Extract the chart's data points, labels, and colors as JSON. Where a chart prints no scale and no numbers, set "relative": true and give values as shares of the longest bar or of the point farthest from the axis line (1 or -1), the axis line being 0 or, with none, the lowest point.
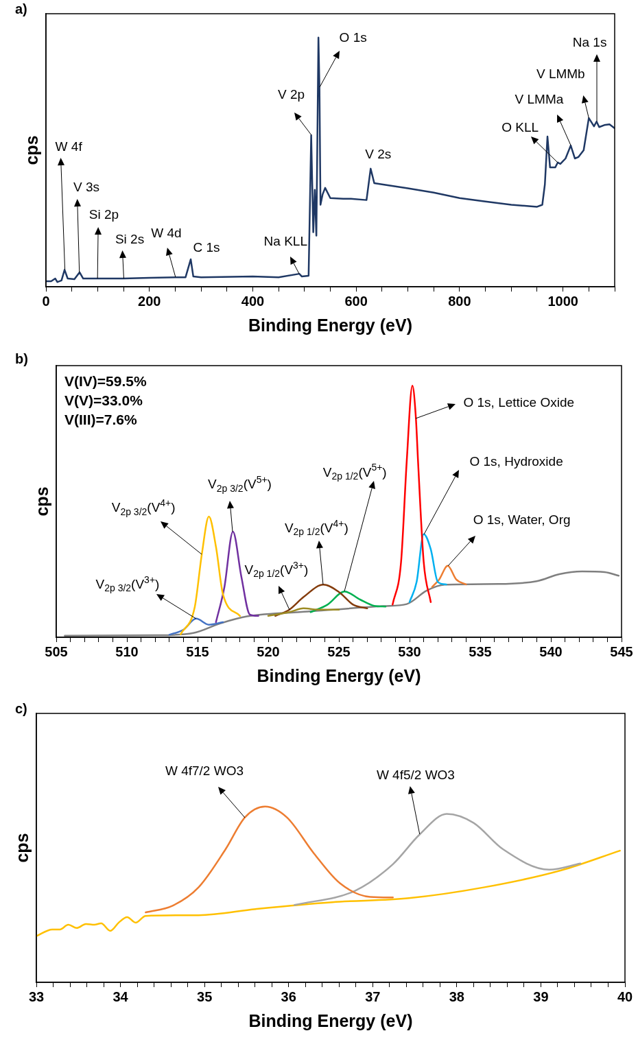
{
  "chart_data": [
    {
      "type": "line",
      "title": "a)",
      "xlabel": "Binding Energy (eV)",
      "ylabel": "cps",
      "relative": true,
      "grid": false,
      "legend": false,
      "marker": "none",
      "line_style": "solid",
      "xlim": [
        0,
        1100
      ],
      "xticks": [
        0,
        {
          "value": 50,
          "label": null
        },
        {
          "value": 100,
          "label": null
        },
        {
          "value": 150,
          "label": null
        },
        200,
        {
          "value": 250,
          "label": null
        },
        {
          "value": 300,
          "label": null
        },
        {
          "value": 350,
          "label": null
        },
        400,
        {
          "value": 450,
          "label": null
        },
        {
          "value": 500,
          "label": null
        },
        {
          "value": 550,
          "label": null
        },
        600,
        {
          "value": 650,
          "label": null
        },
        {
          "value": 700,
          "label": null
        },
        {
          "value": 750,
          "label": null
        },
        800,
        {
          "value": 850,
          "label": null
        },
        {
          "value": 900,
          "label": null
        },
        {
          "value": 950,
          "label": null
        },
        1000,
        {
          "value": 1050,
          "label": null
        },
        {
          "value": 1100,
          "label": null
        }
      ],
      "series": [
        {
          "color": "#1f3864",
          "x": [
            0,
            10,
            18,
            22,
            30,
            36,
            42,
            55,
            65,
            72,
            100,
            150,
            200,
            250,
            270,
            280,
            285,
            300,
            400,
            450,
            490,
            495,
            508,
            513,
            517,
            520,
            523,
            527,
            529,
            531,
            535,
            540,
            550,
            575,
            590,
            620,
            628,
            635,
            650,
            700,
            750,
            800,
            850,
            900,
            950,
            960,
            965,
            970,
            975,
            985,
            990,
            995,
            1005,
            1015,
            1023,
            1030,
            1040,
            1050,
            1060,
            1065,
            1070,
            1080,
            1090,
            1100
          ],
          "values": [
            0.022,
            0.022,
            0.033,
            0.019,
            0.025,
            0.068,
            0.033,
            0.03,
            0.058,
            0.033,
            0.033,
            0.033,
            0.036,
            0.038,
            0.038,
            0.11,
            0.041,
            0.038,
            0.041,
            0.038,
            0.052,
            0.041,
            0.044,
            0.608,
            0.219,
            0.389,
            0.205,
            1.0,
            0.8,
            0.329,
            0.37,
            0.397,
            0.356,
            0.353,
            0.353,
            0.348,
            0.474,
            0.416,
            0.411,
            0.395,
            0.378,
            0.356,
            0.342,
            0.329,
            0.321,
            0.329,
            0.411,
            0.603,
            0.479,
            0.479,
            0.499,
            0.493,
            0.515,
            0.567,
            0.515,
            0.521,
            0.548,
            0.677,
            0.644,
            0.663,
            0.641,
            0.649,
            0.652,
            0.636
          ]
        }
      ],
      "annotations": [
        {
          "text": "W 4f",
          "x": 36,
          "y": 0.068
        },
        {
          "text": "V 3s",
          "x": 65,
          "y": 0.058
        },
        {
          "text": "Si 2p",
          "x": 100,
          "y": 0.033
        },
        {
          "text": "Si 2s",
          "x": 150,
          "y": 0.033
        },
        {
          "text": "W 4d",
          "x": 250,
          "y": 0.038
        },
        {
          "text": "C 1s",
          "x": 280,
          "y": 0.11
        },
        {
          "text": "Na KLL",
          "x": 490,
          "y": 0.052
        },
        {
          "text": "V 2p",
          "x": 513,
          "y": 0.608
        },
        {
          "text": "O 1s",
          "x": 529,
          "y": 0.8
        },
        {
          "text": "V 2s",
          "x": 628,
          "y": 0.474
        },
        {
          "text": "O KLL",
          "x": 990,
          "y": 0.499
        },
        {
          "text": "V LMMa",
          "x": 1015,
          "y": 0.567
        },
        {
          "text": "V LMMb",
          "x": 1050,
          "y": 0.677
        },
        {
          "text": "Na 1s",
          "x": 1065,
          "y": 0.663
        }
      ]
    },
    {
      "type": "line",
      "title": "b)",
      "xlabel": "Binding Energy (eV)",
      "ylabel": "cps",
      "relative": true,
      "grid": false,
      "legend": false,
      "marker": "none",
      "line_style": "solid",
      "xlim": [
        505,
        545
      ],
      "xticks": [
        505,
        {
          "value": 506,
          "label": null
        },
        {
          "value": 507,
          "label": null
        },
        {
          "value": 508,
          "label": null
        },
        {
          "value": 509,
          "label": null
        },
        510,
        {
          "value": 511,
          "label": null
        },
        {
          "value": 512,
          "label": null
        },
        {
          "value": 513,
          "label": null
        },
        {
          "value": 514,
          "label": null
        },
        515,
        {
          "value": 516,
          "label": null
        },
        {
          "value": 517,
          "label": null
        },
        {
          "value": 518,
          "label": null
        },
        {
          "value": 519,
          "label": null
        },
        520,
        {
          "value": 521,
          "label": null
        },
        {
          "value": 522,
          "label": null
        },
        {
          "value": 523,
          "label": null
        },
        {
          "value": 524,
          "label": null
        },
        525,
        {
          "value": 526,
          "label": null
        },
        {
          "value": 527,
          "label": null
        },
        {
          "value": 528,
          "label": null
        },
        {
          "value": 529,
          "label": null
        },
        530,
        {
          "value": 531,
          "label": null
        },
        {
          "value": 532,
          "label": null
        },
        {
          "value": 533,
          "label": null
        },
        {
          "value": 534,
          "label": null
        },
        535,
        {
          "value": 536,
          "label": null
        },
        {
          "value": 537,
          "label": null
        },
        {
          "value": 538,
          "label": null
        },
        {
          "value": 539,
          "label": null
        },
        540,
        {
          "value": 541,
          "label": null
        },
        {
          "value": 542,
          "label": null
        },
        {
          "value": 543,
          "label": null
        },
        {
          "value": 544,
          "label": null
        },
        545
      ],
      "series": [
        {
          "color": "#ffc000",
          "x": [
            513.8,
            514.8,
            515.3,
            515.8,
            516.3,
            516.8,
            518.0
          ],
          "values": [
            0.012,
            0.12,
            0.33,
            0.48,
            0.36,
            0.17,
            0.085
          ]
        },
        {
          "color": "#7030a0",
          "x": [
            516.3,
            516.9,
            517.5,
            518.1,
            518.7,
            519.3
          ],
          "values": [
            0.06,
            0.2,
            0.42,
            0.24,
            0.09,
            0.085
          ]
        },
        {
          "color": "#4472c4",
          "x": [
            513.0,
            514.0,
            514.9,
            515.8,
            516.8
          ],
          "values": [
            0.01,
            0.03,
            0.074,
            0.05,
            0.06
          ]
        },
        {
          "color": "#9c8b24",
          "x": [
            520.0,
            521.5,
            522.5,
            523.5,
            525.0
          ],
          "values": [
            0.085,
            0.1,
            0.115,
            0.11,
            0.11
          ]
        },
        {
          "color": "#843c0c",
          "x": [
            520.5,
            521.5,
            522.5,
            523.9,
            525.0,
            526.0,
            527.0
          ],
          "values": [
            0.085,
            0.11,
            0.16,
            0.209,
            0.18,
            0.13,
            0.115
          ]
        },
        {
          "color": "#00b050",
          "x": [
            523.0,
            524.2,
            525.4,
            526.5,
            527.5,
            528.3
          ],
          "values": [
            0.1,
            0.13,
            0.182,
            0.15,
            0.125,
            0.122
          ]
        },
        {
          "color": "#ff0000",
          "x": [
            528.8,
            529.4,
            529.8,
            530.2,
            530.45,
            530.6,
            531.0,
            531.5
          ],
          "values": [
            0.13,
            0.3,
            0.7,
            1.0,
            0.87,
            0.7,
            0.3,
            0.14
          ]
        },
        {
          "color": "#00b0f0",
          "x": [
            530.0,
            530.5,
            531.0,
            531.5,
            532.0,
            532.6
          ],
          "values": [
            0.14,
            0.22,
            0.41,
            0.35,
            0.22,
            0.21
          ]
        },
        {
          "color": "#ed7d31",
          "x": [
            531.6,
            532.1,
            532.7,
            533.3,
            534.0
          ],
          "values": [
            0.2,
            0.23,
            0.284,
            0.23,
            0.21
          ]
        },
        {
          "color": "#7f7f7f",
          "x": [
            505.6,
            512.1,
            514.7,
            516.6,
            518.5,
            522.8,
            528.2,
            529.8,
            531.2,
            532.5,
            536.3,
            539.0,
            540.6,
            542.2,
            543.8,
            544.8
          ],
          "values": [
            0.006,
            0.008,
            0.017,
            0.055,
            0.083,
            0.102,
            0.124,
            0.132,
            0.185,
            0.209,
            0.212,
            0.223,
            0.251,
            0.262,
            0.259,
            0.245
          ]
        }
      ],
      "annotations": [
        "V(IV)=59.5%",
        "V(V)=33.0%",
        "V(III)=7.6%",
        {
          "text": "V$_{2p 3/2}$(V$^{3+}$)",
          "x": 514.9,
          "y": 0.074
        },
        {
          "text": "V$_{2p 3/2}$(V$^{4+}$)",
          "x": 515.3,
          "y": 0.33
        },
        {
          "text": "V$_{2p 3/2}$(V$^{5+}$)",
          "x": 517.5,
          "y": 0.42
        },
        {
          "text": "V$_{2p 1/2}$(V$^{3+}$)",
          "x": 521.5,
          "y": 0.11
        },
        {
          "text": "V$_{2p 1/2}$(V$^{4+}$)",
          "x": 523.9,
          "y": 0.209
        },
        {
          "text": "V$_{2p 1/2}$(V$^{5+}$)",
          "x": 525.4,
          "y": 0.182
        },
        {
          "text": "O 1s, Lettice Oxide",
          "x": 530.45,
          "y": 0.87
        },
        {
          "text": "O 1s, Hydroxide",
          "x": 531,
          "y": 0.41
        },
        {
          "text": "O 1s, Water, Org",
          "x": 532.7,
          "y": 0.284
        }
      ]
    },
    {
      "type": "line",
      "title": "c)",
      "xlabel": "Binding Energy (eV)",
      "ylabel": "cps",
      "relative": true,
      "grid": false,
      "legend": false,
      "marker": "none",
      "line_style": "solid",
      "xlim": [
        33,
        40
      ],
      "xticks": [
        33,
        {
          "value": 33.2,
          "label": null
        },
        {
          "value": 33.4,
          "label": null
        },
        {
          "value": 33.6,
          "label": null
        },
        {
          "value": 33.8,
          "label": null
        },
        34,
        {
          "value": 34.2,
          "label": null
        },
        {
          "value": 34.4,
          "label": null
        },
        {
          "value": 34.6,
          "label": null
        },
        {
          "value": 34.8,
          "label": null
        },
        35,
        {
          "value": 35.2,
          "label": null
        },
        {
          "value": 35.4,
          "label": null
        },
        {
          "value": 35.6,
          "label": null
        },
        {
          "value": 35.8,
          "label": null
        },
        36,
        {
          "value": 36.2,
          "label": null
        },
        {
          "value": 36.4,
          "label": null
        },
        {
          "value": 36.6,
          "label": null
        },
        {
          "value": 36.8,
          "label": null
        },
        37,
        {
          "value": 37.2,
          "label": null
        },
        {
          "value": 37.4,
          "label": null
        },
        {
          "value": 37.6,
          "label": null
        },
        {
          "value": 37.8,
          "label": null
        },
        38,
        {
          "value": 38.2,
          "label": null
        },
        {
          "value": 38.4,
          "label": null
        },
        {
          "value": 38.6,
          "label": null
        },
        {
          "value": 38.8,
          "label": null
        },
        39,
        {
          "value": 39.2,
          "label": null
        },
        {
          "value": 39.4,
          "label": null
        },
        {
          "value": 39.6,
          "label": null
        },
        {
          "value": 39.8,
          "label": null
        },
        40
      ],
      "series": [
        {
          "color": "#ed7d31",
          "x": [
            34.3,
            34.62,
            34.93,
            35.25,
            35.48,
            35.72,
            35.98,
            36.3,
            36.61,
            36.97,
            37.24
          ],
          "values": [
            0.398,
            0.436,
            0.541,
            0.757,
            0.938,
            1.0,
            0.938,
            0.734,
            0.564,
            0.486,
            0.483
          ]
        },
        {
          "color": "#a5a5a5",
          "x": [
            36.07,
            36.79,
            37.24,
            37.56,
            37.88,
            38.2,
            38.55,
            39.1,
            39.47
          ],
          "values": [
            0.44,
            0.521,
            0.672,
            0.842,
            0.958,
            0.907,
            0.757,
            0.641,
            0.676
          ]
        },
        {
          "color": "#ffc000",
          "x": [
            33.0,
            33.19,
            33.28,
            33.38,
            33.48,
            33.59,
            33.69,
            33.77,
            33.88,
            33.98,
            34.08,
            34.18,
            34.3,
            34.93,
            35.61,
            36.52,
            37.43,
            38.33,
            39.24,
            39.94
          ],
          "values": [
            0.263,
            0.301,
            0.301,
            0.328,
            0.309,
            0.332,
            0.328,
            0.336,
            0.293,
            0.34,
            0.371,
            0.34,
            0.378,
            0.382,
            0.417,
            0.456,
            0.479,
            0.541,
            0.637,
            0.749
          ]
        }
      ],
      "annotations": [
        {
          "text": "W 4f7/2 WO3",
          "x": 35.48,
          "y": 0.938
        },
        {
          "text": "W 4f5/2 WO3",
          "x": 37.56,
          "y": 0.842
        }
      ]
    }
  ]
}
